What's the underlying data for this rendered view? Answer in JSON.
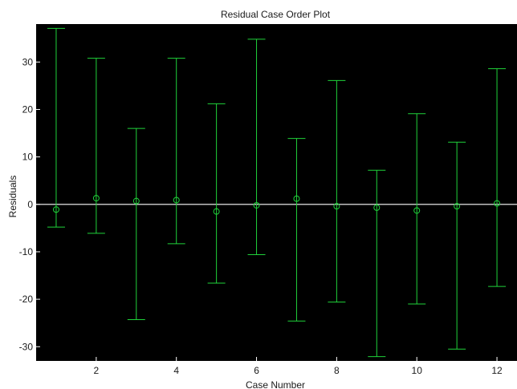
{
  "chart_data": {
    "type": "scatter",
    "title": "Residual Case Order Plot",
    "xlabel": "Case Number",
    "ylabel": "Residuals",
    "xlim": [
      0.5,
      12.5
    ],
    "ylim": [
      -33,
      38
    ],
    "xticks": [
      2,
      4,
      6,
      8,
      10,
      12
    ],
    "yticks": [
      -30,
      -20,
      -10,
      0,
      10,
      20,
      30
    ],
    "grid": false,
    "reference_line_y": 0,
    "series": [
      {
        "x": [
          1,
          2,
          3,
          4,
          5,
          6,
          7,
          8,
          9,
          10,
          11,
          12
        ],
        "residual": [
          -1.1,
          1.3,
          0.7,
          0.9,
          -1.5,
          -0.2,
          1.2,
          -0.4,
          -0.7,
          -1.3,
          -0.4,
          0.2
        ],
        "lower": [
          -4.8,
          -6.1,
          -24.3,
          -8.3,
          -16.6,
          -10.6,
          -24.6,
          -20.6,
          -32.1,
          -21.0,
          -30.5,
          -17.3
        ],
        "upper": [
          37.1,
          30.8,
          16.0,
          30.8,
          21.2,
          34.8,
          13.9,
          26.1,
          7.2,
          19.1,
          13.1,
          28.6
        ]
      }
    ],
    "colors": {
      "plot_background": "#000000",
      "error_bars": "#1fd23a",
      "zero_line": "#ffffff",
      "page_background": "#ffffff"
    }
  }
}
